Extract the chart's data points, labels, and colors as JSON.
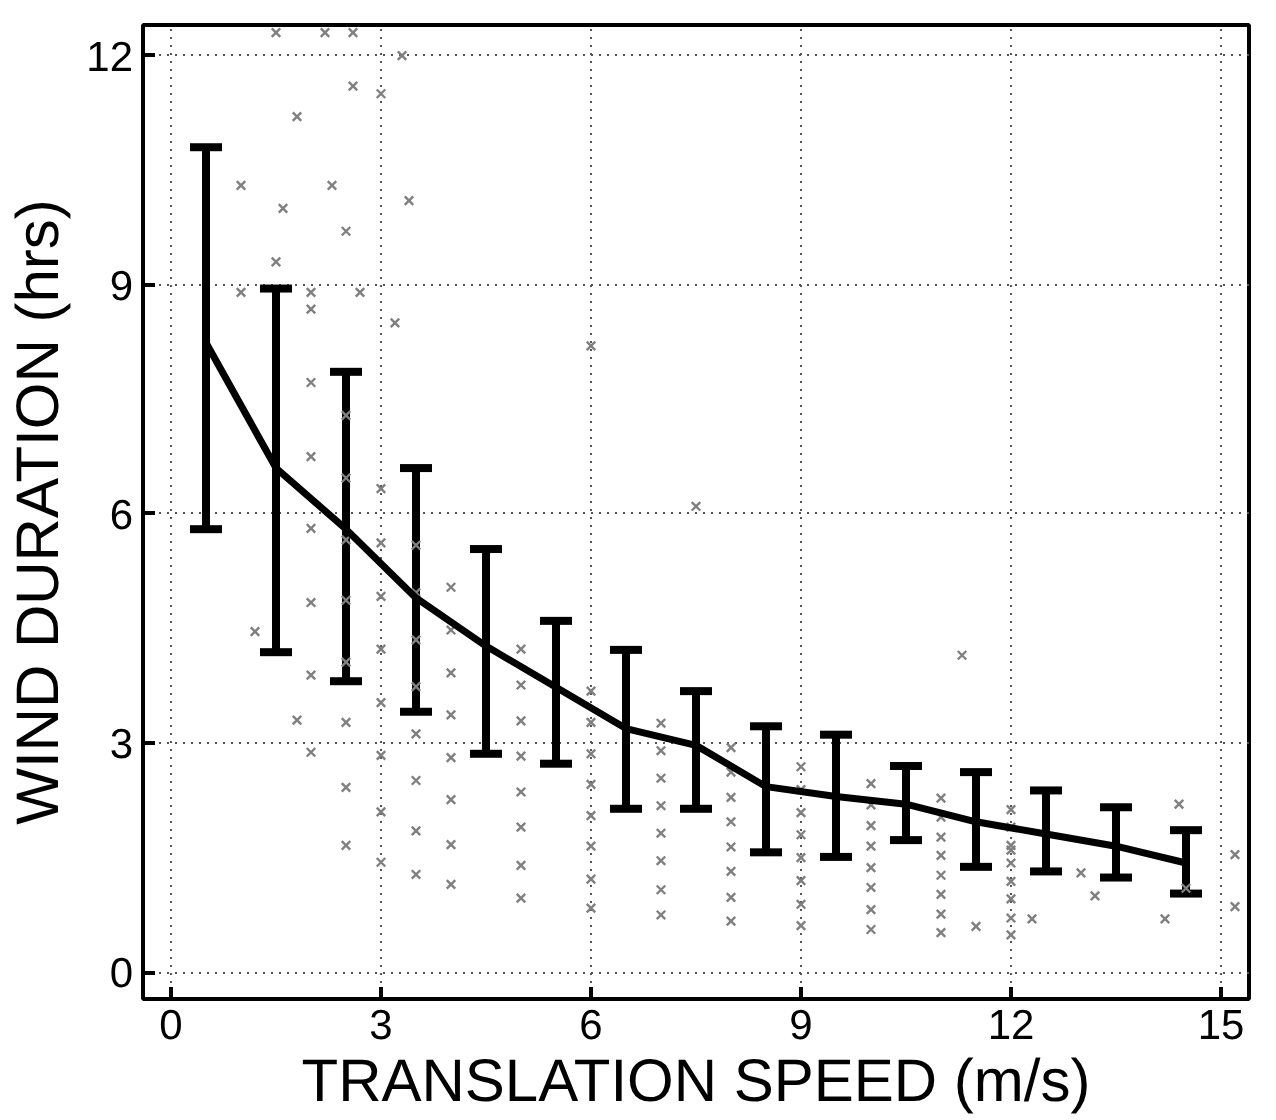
{
  "chart_data": {
    "type": "scatter",
    "xlabel": "TRANSLATION SPEED (m/s)",
    "ylabel": "WIND DURATION (hrs)",
    "xlim": [
      -0.4,
      15.4
    ],
    "ylim": [
      -0.35,
      12.4
    ],
    "xticks": [
      0,
      3,
      6,
      9,
      12,
      15
    ],
    "yticks": [
      0,
      3,
      6,
      9,
      12
    ],
    "grid": true,
    "series": [
      {
        "color": "#808080",
        "marker": "cross",
        "x": [
          2.5,
          3,
          3.5,
          4,
          5,
          6,
          7,
          8,
          9,
          10,
          11,
          12,
          2,
          2.5,
          3,
          3.5,
          4,
          5,
          6,
          7,
          8,
          9,
          10,
          11,
          12,
          2,
          2.5,
          3,
          3.5,
          4,
          5,
          6,
          7,
          8,
          9,
          10,
          11,
          12,
          2,
          2.5,
          3,
          3.5,
          4,
          5,
          6,
          7,
          8,
          9,
          10,
          11,
          12,
          2,
          2.5,
          3,
          3.5,
          4,
          5,
          6,
          7,
          8,
          9,
          10,
          11,
          12,
          2,
          2.5,
          3,
          3.5,
          4,
          5,
          6,
          7,
          8,
          9,
          10,
          11,
          12,
          2,
          2.5,
          3,
          3.5,
          4,
          5,
          6,
          7,
          8,
          9,
          10,
          11,
          12,
          2,
          2.5,
          3,
          3.5,
          4,
          5,
          6,
          7,
          8,
          9,
          10,
          11,
          12,
          1.5,
          2.2,
          2.6,
          3.3,
          2.6,
          1.8,
          3.0,
          1.0,
          1.6,
          2.3,
          2.5,
          1.5,
          3.4,
          1.0,
          2.0,
          2.7,
          3.2,
          6.0,
          7.5,
          11.3,
          1.2,
          1.8,
          14.4,
          15.2,
          15.2,
          14.2,
          14.5,
          13.2,
          13.0,
          11.5,
          12.3,
          12.0
        ],
        "values": [
          1.66,
          1.44,
          1.28,
          1.15,
          0.97,
          0.84,
          0.75,
          0.67,
          0.61,
          0.56,
          0.52,
          0.49,
          2.88,
          2.42,
          2.1,
          1.85,
          1.67,
          1.4,
          1.22,
          1.08,
          0.98,
          0.89,
          0.82,
          0.76,
          0.71,
          3.89,
          3.27,
          2.84,
          2.51,
          2.26,
          1.9,
          1.65,
          1.46,
          1.32,
          1.2,
          1.11,
          1.02,
          0.96,
          4.84,
          4.06,
          3.53,
          3.12,
          2.81,
          2.36,
          2.05,
          1.82,
          1.64,
          1.5,
          1.37,
          1.27,
          1.19,
          5.81,
          4.87,
          4.23,
          3.74,
          3.37,
          2.83,
          2.46,
          2.18,
          1.97,
          1.8,
          1.65,
          1.53,
          1.43,
          6.75,
          5.66,
          4.92,
          4.35,
          3.92,
          3.29,
          2.86,
          2.54,
          2.29,
          2.09,
          1.92,
          1.77,
          1.66,
          7.72,
          6.47,
          5.62,
          4.97,
          4.48,
          3.76,
          3.27,
          2.9,
          2.62,
          2.39,
          2.19,
          2.03,
          1.9,
          8.68,
          7.29,
          6.33,
          5.59,
          5.04,
          4.23,
          3.68,
          3.26,
          2.94,
          2.69,
          2.47,
          2.28,
          2.13,
          12.3,
          12.3,
          12.3,
          12.0,
          11.6,
          11.2,
          11.5,
          10.3,
          10.0,
          10.3,
          9.7,
          9.3,
          10.1,
          8.9,
          8.9,
          8.9,
          8.5,
          8.2,
          6.1,
          4.15,
          4.46,
          3.3,
          2.2,
          0.86,
          1.54,
          0.7,
          1.1,
          1.0,
          1.3,
          0.6,
          0.7,
          1.6
        ]
      },
      {
        "type": "line",
        "color": "#000000",
        "marker": "none",
        "line_style": "solid",
        "x": [
          0.5,
          1.5,
          2.5,
          3.5,
          4.5,
          5.5,
          6.5,
          7.5,
          8.5,
          9.5,
          10.5,
          11.5,
          12.5,
          13.5,
          14.5
        ],
        "values": [
          8.24,
          6.6,
          5.8,
          4.9,
          4.27,
          3.73,
          3.19,
          2.97,
          2.43,
          2.3,
          2.2,
          1.97,
          1.81,
          1.65,
          1.43
        ],
        "errors": [
          [
            5.8,
            10.8
          ],
          [
            4.19,
            8.95
          ],
          [
            3.81,
            7.86
          ],
          [
            3.41,
            6.6
          ],
          [
            2.86,
            5.54
          ],
          [
            2.73,
            4.6
          ],
          [
            2.14,
            4.22
          ],
          [
            2.14,
            3.68
          ],
          [
            1.57,
            3.22
          ],
          [
            1.51,
            3.11
          ],
          [
            1.73,
            2.7
          ],
          [
            1.38,
            2.62
          ],
          [
            1.32,
            2.38
          ],
          [
            1.24,
            2.16
          ],
          [
            1.03,
            1.86
          ]
        ]
      }
    ]
  }
}
